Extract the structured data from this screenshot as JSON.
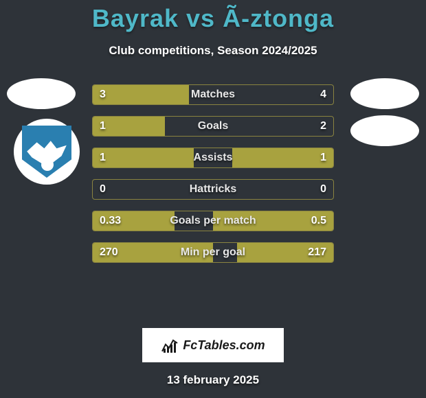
{
  "title_left": "Bayrak",
  "title_mid": "vs",
  "title_right": "Ã-ztonga",
  "subtitle": "Club competitions, Season 2024/2025",
  "colors": {
    "accent": "#4fb8c8",
    "bar": "#a8a23f",
    "bg": "#2e3339"
  },
  "stats": [
    {
      "label": "Matches",
      "left_val": "3",
      "right_val": "4",
      "left_pct": 40,
      "right_pct": 0
    },
    {
      "label": "Goals",
      "left_val": "1",
      "right_val": "2",
      "left_pct": 30,
      "right_pct": 0
    },
    {
      "label": "Assists",
      "left_val": "1",
      "right_val": "1",
      "left_pct": 42,
      "right_pct": 42
    },
    {
      "label": "Hattricks",
      "left_val": "0",
      "right_val": "0",
      "left_pct": 0,
      "right_pct": 0
    },
    {
      "label": "Goals per match",
      "left_val": "0.33",
      "right_val": "0.5",
      "left_pct": 34,
      "right_pct": 50
    },
    {
      "label": "Min per goal",
      "left_val": "270",
      "right_val": "217",
      "left_pct": 50,
      "right_pct": 40
    }
  ],
  "branding": "FcTables.com",
  "date": "13 february 2025"
}
